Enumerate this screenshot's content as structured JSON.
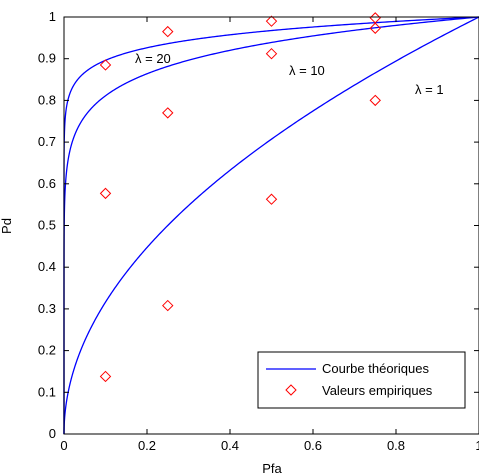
{
  "chart_data": {
    "type": "line",
    "xlabel": "Pfa",
    "ylabel": "Pd",
    "xlim": [
      0,
      1
    ],
    "ylim": [
      0,
      1
    ],
    "x_ticks": [
      "0",
      "0.2",
      "0.4",
      "0.6",
      "0.8",
      "1"
    ],
    "y_ticks": [
      "0",
      "0.1",
      "0.2",
      "0.3",
      "0.4",
      "0.5",
      "0.6",
      "0.7",
      "0.8",
      "0.9",
      "1"
    ],
    "grid": false,
    "legend_position": "bottom-right",
    "colors": {
      "theory": "#0000ff",
      "empirical": "#ff0000"
    },
    "series": [
      {
        "name": "Courbe théoriques",
        "kind": "line",
        "curves": [
          {
            "label": "λ = 20",
            "lambda": 20
          },
          {
            "label": "λ = 10",
            "lambda": 10
          },
          {
            "label": "λ = 1",
            "lambda": 1
          }
        ]
      },
      {
        "name": "Valeurs empiriques",
        "kind": "marker",
        "marker": "diamond",
        "groups": [
          {
            "lambda": 20,
            "points": [
              [
                0.1,
                0.885
              ],
              [
                0.25,
                0.965
              ],
              [
                0.5,
                0.99
              ],
              [
                0.75,
                0.998
              ]
            ]
          },
          {
            "lambda": 10,
            "points": [
              [
                0.1,
                0.577
              ],
              [
                0.25,
                0.77
              ],
              [
                0.5,
                0.912
              ],
              [
                0.75,
                0.973
              ]
            ]
          },
          {
            "lambda": 1,
            "points": [
              [
                0.1,
                0.138
              ],
              [
                0.25,
                0.308
              ],
              [
                0.5,
                0.563
              ],
              [
                0.75,
                0.8
              ]
            ]
          }
        ]
      }
    ]
  }
}
